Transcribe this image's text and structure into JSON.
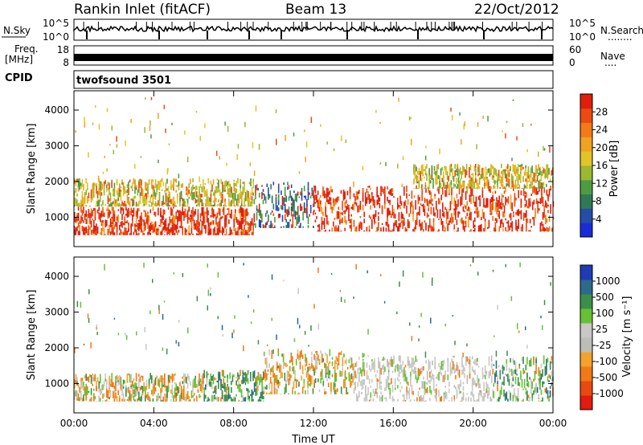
{
  "header": {
    "title": "Rankin Inlet (fitACF)",
    "beam": "Beam 13",
    "date": "22/Oct/2012"
  },
  "noise_panel": {
    "left_label": "N.Sky",
    "right_label": "N.Search",
    "right_legend": "........",
    "left_ticks": [
      "10^5",
      "10^0"
    ],
    "right_ticks": [
      "10^5",
      "10^0"
    ]
  },
  "freq_panel": {
    "left_label": "Freq.",
    "left_unit": "[MHz]",
    "right_label": "Nave",
    "right_legend": "....",
    "left_ticks": [
      "18",
      "8"
    ],
    "right_ticks": [
      "60",
      "0"
    ]
  },
  "cpid": {
    "label": "CPID",
    "value": "twofsound 3501"
  },
  "colors": {
    "power_scale": [
      "#1a2bd9",
      "#254da8",
      "#2f7a55",
      "#4e9b44",
      "#9ab832",
      "#e2c428",
      "#f0a222",
      "#f47a17",
      "#ea4b10",
      "#e01e0b"
    ],
    "velocity_scale": [
      "#1f3bb5",
      "#2b6a8a",
      "#3b8f4a",
      "#66c233",
      "#c8c8c4",
      "#bdbdb7",
      "#f3a22b",
      "#f07a15",
      "#e84a10",
      "#e11b0d"
    ]
  },
  "chart_data": [
    {
      "type": "heatmap",
      "panel": "power",
      "title": "",
      "xlabel": "Time UT",
      "ylabel": "Slant Range [km]",
      "x_ticks": [
        "00:00",
        "04:00",
        "08:00",
        "12:00",
        "16:00",
        "20:00",
        "00:00"
      ],
      "xlim_hours": [
        0,
        24
      ],
      "y_ticks": [
        "1000",
        "2000",
        "3000",
        "4000"
      ],
      "ylim_km": [
        180,
        4540
      ],
      "colorbar": {
        "label": "Power [dB]",
        "ticks": [
          "4",
          "8",
          "12",
          "16",
          "20",
          "24",
          "28"
        ],
        "range": [
          0,
          30
        ]
      },
      "echo_regions": [
        {
          "t0": 0.0,
          "t1": 9.0,
          "r0": 500,
          "r1": 1300,
          "level": "strong"
        },
        {
          "t0": 0.0,
          "t1": 9.0,
          "r0": 1300,
          "r1": 2100,
          "level": "moderate"
        },
        {
          "t0": 9.0,
          "t1": 12.0,
          "r0": 700,
          "r1": 2000,
          "level": "weak"
        },
        {
          "t0": 12.0,
          "t1": 24.0,
          "r0": 600,
          "r1": 1900,
          "level": "strong"
        },
        {
          "t0": 17.0,
          "t1": 24.0,
          "r0": 1800,
          "r1": 2500,
          "level": "moderate"
        }
      ]
    },
    {
      "type": "heatmap",
      "panel": "velocity",
      "title": "",
      "xlabel": "Time UT",
      "ylabel": "Slant Range [km]",
      "x_ticks": [
        "00:00",
        "04:00",
        "08:00",
        "12:00",
        "16:00",
        "20:00",
        "00:00"
      ],
      "xlim_hours": [
        0,
        24
      ],
      "y_ticks": [
        "1000",
        "2000",
        "3000",
        "4000"
      ],
      "ylim_km": [
        180,
        4540
      ],
      "colorbar": {
        "label": "Velocity [m s⁻¹]",
        "ticks": [
          "1000",
          "500",
          "100",
          "25",
          "-25",
          "-100",
          "-500",
          "-1000"
        ],
        "range": [
          -1000,
          1000
        ]
      },
      "echo_regions": [
        {
          "t0": 0.0,
          "t1": 6.5,
          "r0": 500,
          "r1": 1300,
          "level": "mixed"
        },
        {
          "t0": 6.5,
          "t1": 9.5,
          "r0": 500,
          "r1": 1400,
          "level": "positive"
        },
        {
          "t0": 9.5,
          "t1": 14.0,
          "r0": 700,
          "r1": 2000,
          "level": "mixed"
        },
        {
          "t0": 14.0,
          "t1": 21.0,
          "r0": 500,
          "r1": 1800,
          "level": "neutral"
        },
        {
          "t0": 21.0,
          "t1": 24.0,
          "r0": 500,
          "r1": 1800,
          "level": "positive"
        }
      ]
    }
  ]
}
